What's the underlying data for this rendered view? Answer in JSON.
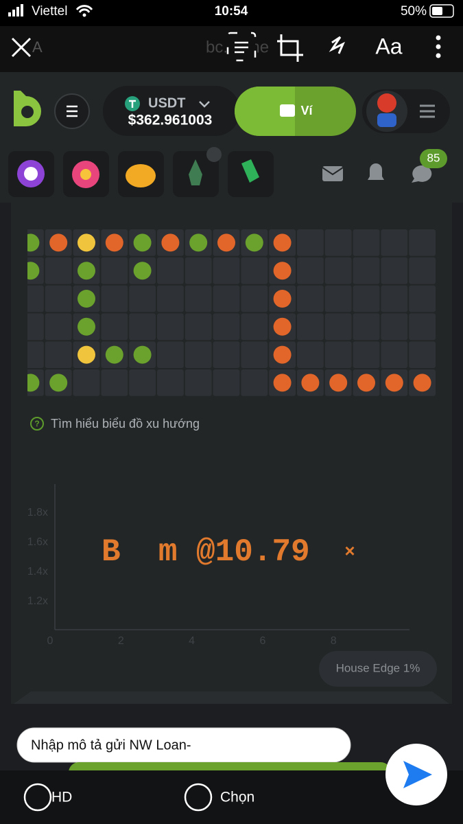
{
  "status_bar": {
    "carrier": "Viettel",
    "time": "10:54",
    "battery": "50%"
  },
  "markup_toolbar": {
    "url_prefix": "A",
    "url": "bc.game",
    "text_tool": "Aa"
  },
  "header": {
    "currency": "USDT",
    "balance": "$362.961003",
    "wallet_button": "Ví"
  },
  "icon_row": {
    "chat_badge": "85"
  },
  "trend_grid": {
    "rows": [
      [
        "green",
        "orange",
        "yellow",
        "orange",
        "green",
        "orange",
        "green",
        "orange",
        "green",
        "orange",
        null,
        null,
        null,
        null,
        null
      ],
      [
        "green",
        null,
        "green",
        null,
        "green",
        null,
        null,
        null,
        null,
        "orange",
        null,
        null,
        null,
        null,
        null
      ],
      [
        null,
        null,
        "green",
        null,
        null,
        null,
        null,
        null,
        null,
        "orange",
        null,
        null,
        null,
        null,
        null
      ],
      [
        null,
        null,
        "green",
        null,
        null,
        null,
        null,
        null,
        null,
        "orange",
        null,
        null,
        null,
        null,
        null
      ],
      [
        null,
        null,
        "yellow",
        "green",
        "green",
        null,
        null,
        null,
        null,
        "orange",
        null,
        null,
        null,
        null,
        null
      ],
      [
        "green",
        "green",
        null,
        null,
        null,
        null,
        null,
        null,
        null,
        "orange",
        "orange",
        "orange",
        "orange",
        "orange",
        "orange"
      ]
    ]
  },
  "help_link": "Tìm hiểu biểu đồ xu hướng",
  "crash_chart": {
    "y_labels": [
      "1.8x",
      "1.6x",
      "1.4x",
      "1.2x"
    ],
    "x_labels": [
      "0",
      "2",
      "4",
      "6",
      "8"
    ],
    "result": "B  m @10.79",
    "result_suffix": "×"
  },
  "house_edge": "House Edge 1%",
  "input_placeholder": "Nhập mô tả gửi NW Loan-",
  "bottom_bar": {
    "hd": "HD",
    "select": "Chọn"
  }
}
